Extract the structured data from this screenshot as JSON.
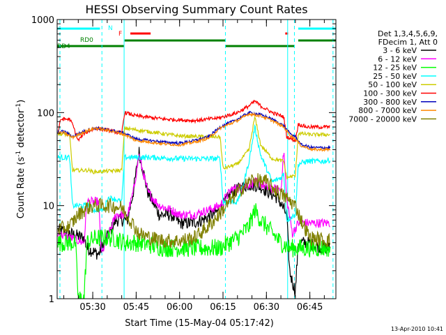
{
  "chart_data": {
    "type": "line",
    "title": "HESSI Observing Summary Count Rates",
    "xlabel": "Start Time (15-May-04 05:17:42)",
    "ylabel_main": "Count Rate (s",
    "ylabel_sup1": "-1",
    "ylabel_mid": " detector",
    "ylabel_sup2": "-1",
    "ylabel_end": ")",
    "yscale": "log",
    "ylim": [
      1,
      1000
    ],
    "xlim": [
      "05:17:42",
      "06:54:00"
    ],
    "yticks": [
      {
        "value": 1,
        "label": "1"
      },
      {
        "value": 10,
        "label": "10"
      },
      {
        "value": 100,
        "label": "100"
      },
      {
        "value": 1000,
        "label": "1000"
      }
    ],
    "xticks": [
      {
        "value": "05:30",
        "label": "05:30"
      },
      {
        "value": "05:45",
        "label": "05:45"
      },
      {
        "value": "06:00",
        "label": "06:00"
      },
      {
        "value": "06:15",
        "label": "06:15"
      },
      {
        "value": "06:30",
        "label": "06:30"
      },
      {
        "value": "06:45",
        "label": "06:45"
      }
    ],
    "legend": {
      "placement": "right",
      "header": [
        "Det 1,3,4,5,6,9,",
        "FDecim 1, Att 0"
      ],
      "entries": [
        {
          "label": "3 - 6 keV",
          "color": "#000000"
        },
        {
          "label": "6 - 12 keV",
          "color": "#ff00ff"
        },
        {
          "label": "12 - 25 keV",
          "color": "#00ff00"
        },
        {
          "label": "25 - 50 keV",
          "color": "#00ffff"
        },
        {
          "label": "50 - 100 keV",
          "color": "#cccc00"
        },
        {
          "label": "100 - 300 keV",
          "color": "#ff0000"
        },
        {
          "label": "300 - 800 keV",
          "color": "#0000bb"
        },
        {
          "label": "800 - 7000 keV",
          "color": "#ff8800"
        },
        {
          "label": "7000 - 20000 keV",
          "color": "#808000"
        }
      ]
    },
    "flag_labels": [
      {
        "text": "N",
        "color": "#00ffff"
      },
      {
        "text": "F",
        "color": "#ff0000"
      },
      {
        "text": "RD0",
        "color": "#008000"
      },
      {
        "text": "RD4",
        "color": "#008000"
      }
    ],
    "vertical_markers": [
      "05:18:40",
      "05:33:10",
      "05:40:50",
      "06:15:50",
      "06:37:20",
      "06:39:40",
      "06:53:00"
    ],
    "series": [
      {
        "name": "3 - 6 keV",
        "color": "#000000",
        "noise": 0.07,
        "points": [
          [
            "05:18",
            5.5
          ],
          [
            "05:27",
            4.5
          ],
          [
            "05:28",
            3.5
          ],
          [
            "05:32",
            3
          ],
          [
            "05:33",
            3.5
          ],
          [
            "05:38",
            7
          ],
          [
            "05:42",
            7
          ],
          [
            "05:44",
            14
          ],
          [
            "05:46",
            38
          ],
          [
            "05:49",
            14
          ],
          [
            "05:53",
            8
          ],
          [
            "05:57",
            8
          ],
          [
            "06:00",
            6.5
          ],
          [
            "06:04",
            6.5
          ],
          [
            "06:08",
            7
          ],
          [
            "06:14",
            9
          ],
          [
            "06:18",
            14
          ],
          [
            "06:24",
            17
          ],
          [
            "06:28",
            16
          ],
          [
            "06:34",
            12
          ],
          [
            "06:37",
            8
          ],
          [
            "06:38",
            2
          ],
          [
            "06:39",
            1.5
          ],
          [
            "06:40",
            1.2
          ],
          [
            "06:41",
            4
          ],
          [
            "06:44",
            4
          ],
          [
            "06:50",
            3.5
          ],
          [
            "06:52",
            3.5
          ]
        ]
      },
      {
        "name": "6 - 12 keV",
        "color": "#ff00ff",
        "noise": 0.05,
        "points": [
          [
            "05:18",
            5
          ],
          [
            "05:27",
            4
          ],
          [
            "05:28",
            11
          ],
          [
            "05:32",
            11
          ],
          [
            "05:33",
            3
          ],
          [
            "05:38",
            8
          ],
          [
            "05:42",
            8
          ],
          [
            "05:44",
            14
          ],
          [
            "05:46",
            35
          ],
          [
            "05:49",
            14
          ],
          [
            "05:53",
            10
          ],
          [
            "05:57",
            9
          ],
          [
            "06:00",
            8
          ],
          [
            "06:05",
            8
          ],
          [
            "06:10",
            9
          ],
          [
            "06:14",
            10
          ],
          [
            "06:18",
            15
          ],
          [
            "06:22",
            16
          ],
          [
            "06:26",
            18
          ],
          [
            "06:32",
            15
          ],
          [
            "06:35",
            15
          ],
          [
            "06:36",
            40
          ],
          [
            "06:37",
            12
          ],
          [
            "06:39",
            5
          ],
          [
            "06:41",
            6.5
          ],
          [
            "06:44",
            6.5
          ],
          [
            "06:50",
            6.5
          ],
          [
            "06:52",
            6.5
          ]
        ]
      },
      {
        "name": "12 - 25 keV",
        "color": "#00ff00",
        "noise": 0.1,
        "points": [
          [
            "05:18",
            4
          ],
          [
            "05:22",
            4
          ],
          [
            "05:24",
            4
          ],
          [
            "05:25",
            1
          ],
          [
            "05:27",
            1
          ],
          [
            "05:28",
            4
          ],
          [
            "05:31",
            4.5
          ],
          [
            "05:37",
            4.5
          ],
          [
            "05:41",
            4
          ],
          [
            "05:46",
            4
          ],
          [
            "05:55",
            3.5
          ],
          [
            "06:05",
            3.5
          ],
          [
            "06:12",
            3.5
          ],
          [
            "06:14",
            3.5
          ],
          [
            "06:17",
            4
          ],
          [
            "06:20",
            4.5
          ],
          [
            "06:24",
            6
          ],
          [
            "06:26",
            9
          ],
          [
            "06:28",
            7
          ],
          [
            "06:31",
            5.5
          ],
          [
            "06:35",
            4
          ],
          [
            "06:38",
            3.5
          ],
          [
            "06:44",
            3.5
          ],
          [
            "06:52",
            3.5
          ]
        ]
      },
      {
        "name": "25 - 50 keV",
        "color": "#00ffff",
        "noise": 0.03,
        "points": [
          [
            "05:18",
            33
          ],
          [
            "05:22",
            33
          ],
          [
            "05:23",
            10
          ],
          [
            "05:29",
            10
          ],
          [
            "05:30",
            9
          ],
          [
            "05:34",
            9
          ],
          [
            "05:35",
            12
          ],
          [
            "05:37",
            12
          ],
          [
            "05:40",
            11
          ],
          [
            "05:41",
            33
          ],
          [
            "05:50",
            33
          ],
          [
            "06:00",
            32
          ],
          [
            "06:14",
            32
          ],
          [
            "06:15",
            11
          ],
          [
            "06:20",
            11
          ],
          [
            "06:22",
            17
          ],
          [
            "06:24",
            30
          ],
          [
            "06:26",
            70
          ],
          [
            "06:28",
            35
          ],
          [
            "06:32",
            18
          ],
          [
            "06:35",
            20
          ],
          [
            "06:36",
            22
          ],
          [
            "06:37",
            7
          ],
          [
            "06:40",
            8
          ],
          [
            "06:41",
            28
          ],
          [
            "06:44",
            30
          ],
          [
            "06:50",
            30
          ],
          [
            "06:52",
            31
          ]
        ]
      },
      {
        "name": "50 - 100 keV",
        "color": "#cccc00",
        "noise": 0.02,
        "points": [
          [
            "05:18",
            59
          ],
          [
            "05:22",
            58
          ],
          [
            "05:23",
            24
          ],
          [
            "05:29",
            24
          ],
          [
            "05:30",
            23
          ],
          [
            "05:40",
            24
          ],
          [
            "05:41",
            68
          ],
          [
            "05:50",
            62
          ],
          [
            "06:00",
            56
          ],
          [
            "06:10",
            55
          ],
          [
            "06:14",
            55
          ],
          [
            "06:15",
            25
          ],
          [
            "06:20",
            28
          ],
          [
            "06:24",
            40
          ],
          [
            "06:26",
            90
          ],
          [
            "06:28",
            45
          ],
          [
            "06:32",
            32
          ],
          [
            "06:36",
            30
          ],
          [
            "06:37",
            20
          ],
          [
            "06:40",
            21
          ],
          [
            "06:41",
            60
          ],
          [
            "06:45",
            58
          ],
          [
            "06:52",
            58
          ]
        ]
      },
      {
        "name": "100 - 300 keV",
        "color": "#ff0000",
        "noise": 0.02,
        "points": [
          [
            "05:18",
            62
          ],
          [
            "05:19",
            85
          ],
          [
            "05:22",
            85
          ],
          [
            "05:23",
            75
          ],
          [
            "05:25",
            50
          ],
          [
            "05:27",
            60
          ],
          [
            "05:31",
            68
          ],
          [
            "05:35",
            65
          ],
          [
            "05:40",
            60
          ],
          [
            "05:41",
            100
          ],
          [
            "05:45",
            92
          ],
          [
            "05:55",
            85
          ],
          [
            "06:05",
            82
          ],
          [
            "06:10",
            85
          ],
          [
            "06:14",
            88
          ],
          [
            "06:15",
            90
          ],
          [
            "06:20",
            100
          ],
          [
            "06:24",
            118
          ],
          [
            "06:26",
            133
          ],
          [
            "06:28",
            118
          ],
          [
            "06:32",
            100
          ],
          [
            "06:36",
            90
          ],
          [
            "06:37",
            55
          ],
          [
            "06:40",
            50
          ],
          [
            "06:41",
            75
          ],
          [
            "06:44",
            70
          ],
          [
            "06:52",
            70
          ]
        ]
      },
      {
        "name": "300 - 800 keV",
        "color": "#0000bb",
        "noise": 0.015,
        "points": [
          [
            "05:18",
            62
          ],
          [
            "05:20",
            63
          ],
          [
            "05:23",
            55
          ],
          [
            "05:27",
            63
          ],
          [
            "05:31",
            68
          ],
          [
            "05:36",
            65
          ],
          [
            "05:41",
            60
          ],
          [
            "05:45",
            52
          ],
          [
            "05:50",
            50
          ],
          [
            "05:55",
            48
          ],
          [
            "06:00",
            47
          ],
          [
            "06:05",
            50
          ],
          [
            "06:10",
            55
          ],
          [
            "06:14",
            70
          ],
          [
            "06:20",
            85
          ],
          [
            "06:24",
            100
          ],
          [
            "06:28",
            95
          ],
          [
            "06:32",
            85
          ],
          [
            "06:36",
            72
          ],
          [
            "06:38",
            60
          ],
          [
            "06:40",
            55
          ],
          [
            "06:42",
            45
          ],
          [
            "06:46",
            42
          ],
          [
            "06:52",
            42
          ]
        ]
      },
      {
        "name": "800 - 7000 keV",
        "color": "#ff8800",
        "noise": 0.015,
        "points": [
          [
            "05:18",
            60
          ],
          [
            "05:20",
            61
          ],
          [
            "05:23",
            54
          ],
          [
            "05:27",
            62
          ],
          [
            "05:31",
            68
          ],
          [
            "05:36",
            64
          ],
          [
            "05:41",
            58
          ],
          [
            "05:45",
            50
          ],
          [
            "05:50",
            48
          ],
          [
            "05:55",
            46
          ],
          [
            "06:00",
            45
          ],
          [
            "06:05",
            48
          ],
          [
            "06:10",
            53
          ],
          [
            "06:14",
            68
          ],
          [
            "06:20",
            82
          ],
          [
            "06:24",
            97
          ],
          [
            "06:28",
            92
          ],
          [
            "06:32",
            82
          ],
          [
            "06:36",
            70
          ],
          [
            "06:38",
            58
          ],
          [
            "06:40",
            52
          ],
          [
            "06:42",
            44
          ],
          [
            "06:46",
            40
          ],
          [
            "06:52",
            40
          ]
        ]
      },
      {
        "name": "7000 - 20000 keV",
        "color": "#808000",
        "noise": 0.08,
        "points": [
          [
            "05:18",
            5.5
          ],
          [
            "05:22",
            6
          ],
          [
            "05:25",
            8
          ],
          [
            "05:28",
            9.5
          ],
          [
            "05:31",
            10
          ],
          [
            "05:36",
            10
          ],
          [
            "05:40",
            9.5
          ],
          [
            "05:43",
            7
          ],
          [
            "05:46",
            5
          ],
          [
            "05:50",
            4.5
          ],
          [
            "05:55",
            4.2
          ],
          [
            "06:00",
            4.2
          ],
          [
            "06:05",
            4.5
          ],
          [
            "06:10",
            6
          ],
          [
            "06:15",
            9
          ],
          [
            "06:20",
            14
          ],
          [
            "06:25",
            19
          ],
          [
            "06:30",
            18
          ],
          [
            "06:34",
            14
          ],
          [
            "06:37",
            12
          ],
          [
            "06:40",
            10
          ],
          [
            "06:42",
            7
          ],
          [
            "06:45",
            4.5
          ],
          [
            "06:52",
            4.2
          ]
        ]
      }
    ],
    "timestamp": "13-Apr-2010 10:41"
  }
}
